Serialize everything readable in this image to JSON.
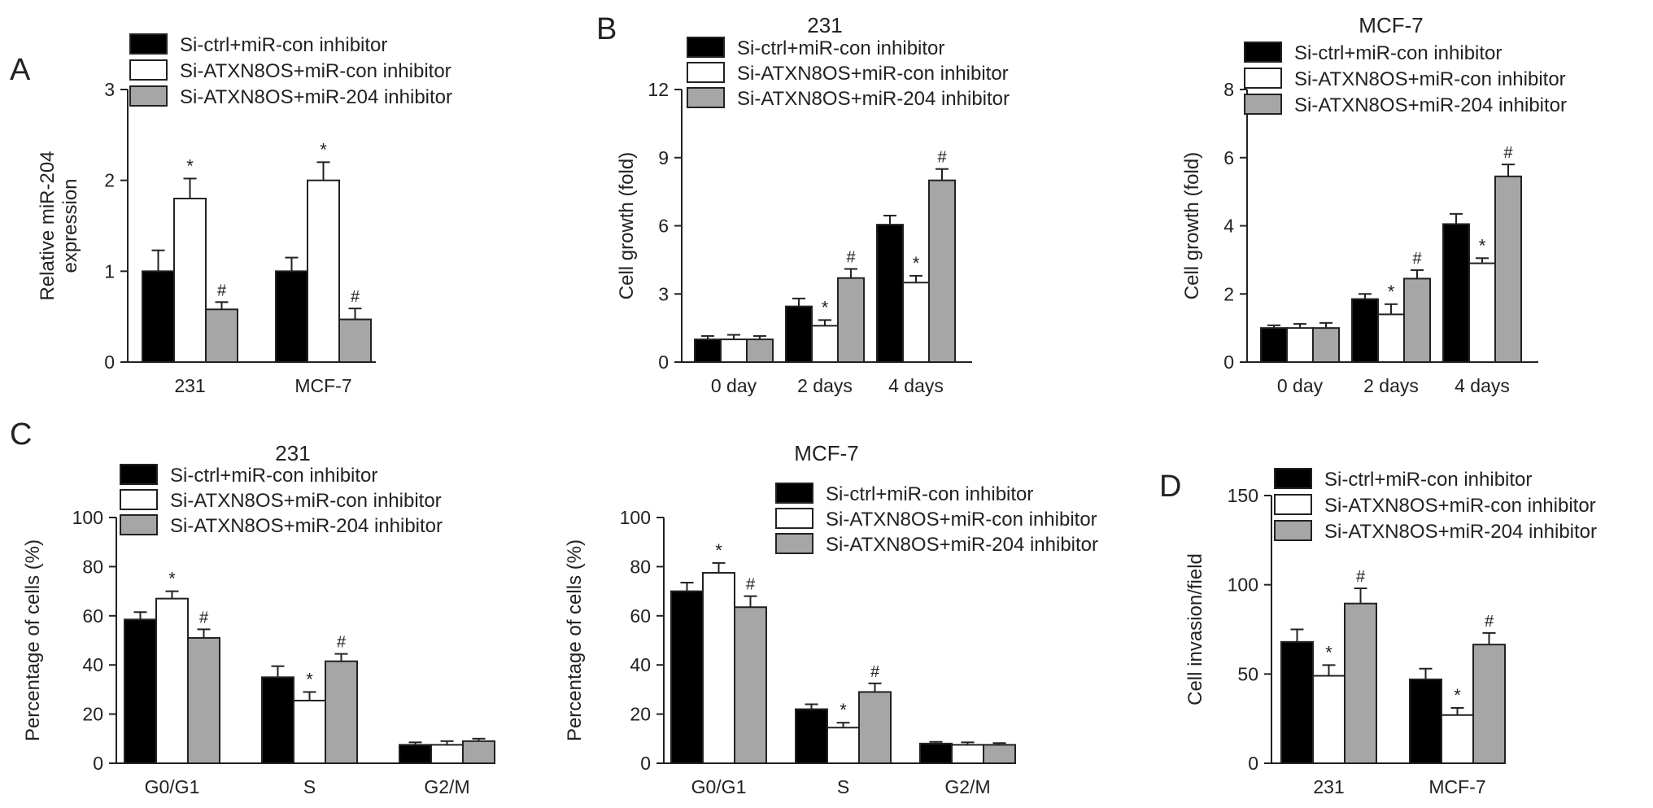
{
  "figure": {
    "legend_labels": [
      "Si-ctrl+miR-con inhibitor",
      "Si-ATXN8OS+miR-con inhibitor",
      "Si-ATXN8OS+miR-204 inhibitor"
    ],
    "colors": {
      "series": [
        "#000000",
        "#ffffff",
        "#a6a6a6"
      ],
      "axis": "#222222"
    }
  },
  "chart_data": [
    {
      "panel_label": "A",
      "type": "bar",
      "title": "",
      "xlabel": "",
      "ylabel": "Relative miR-204 expression",
      "categories": [
        "231",
        "MCF-7"
      ],
      "ylim": [
        0,
        3
      ],
      "yticks": [
        "0",
        "1",
        "2",
        "3"
      ],
      "series": [
        {
          "name": "Si-ctrl+miR-con inhibitor",
          "values": [
            1.0,
            1.0
          ],
          "errors": [
            0.23,
            0.15
          ],
          "marks": [
            "",
            ""
          ]
        },
        {
          "name": "Si-ATXN8OS+miR-con inhibitor",
          "values": [
            1.8,
            2.0
          ],
          "errors": [
            0.22,
            0.2
          ],
          "marks": [
            "*",
            "*"
          ]
        },
        {
          "name": "Si-ATXN8OS+miR-204 inhibitor",
          "values": [
            0.58,
            0.47
          ],
          "errors": [
            0.08,
            0.12
          ],
          "marks": [
            "#",
            "#"
          ]
        }
      ],
      "legend": "top-left",
      "grid": false
    },
    {
      "panel_label": "B",
      "type": "bar",
      "title": "231",
      "xlabel": "",
      "ylabel": "Cell growth (fold)",
      "categories": [
        "0 day",
        "2 days",
        "4 days"
      ],
      "ylim": [
        0,
        12
      ],
      "yticks": [
        "0",
        "3",
        "6",
        "9",
        "12"
      ],
      "series": [
        {
          "name": "Si-ctrl+miR-con inhibitor",
          "values": [
            1.0,
            2.45,
            6.05
          ],
          "errors": [
            0.15,
            0.35,
            0.4
          ],
          "marks": [
            "",
            "",
            ""
          ]
        },
        {
          "name": "Si-ATXN8OS+miR-con inhibitor",
          "values": [
            1.0,
            1.6,
            3.5
          ],
          "errors": [
            0.2,
            0.25,
            0.3
          ],
          "marks": [
            "",
            "*",
            "*"
          ]
        },
        {
          "name": "Si-ATXN8OS+miR-204 inhibitor",
          "values": [
            1.0,
            3.7,
            8.0
          ],
          "errors": [
            0.15,
            0.4,
            0.5
          ],
          "marks": [
            "",
            "#",
            "#"
          ]
        }
      ],
      "legend": "top-left",
      "grid": false
    },
    {
      "panel_label": "",
      "type": "bar",
      "title": "MCF-7",
      "xlabel": "",
      "ylabel": "Cell growth (fold)",
      "categories": [
        "0 day",
        "2 days",
        "4 days"
      ],
      "ylim": [
        0,
        8
      ],
      "yticks": [
        "0",
        "2",
        "4",
        "6",
        "8"
      ],
      "series": [
        {
          "name": "Si-ctrl+miR-con inhibitor",
          "values": [
            1.0,
            1.85,
            4.05
          ],
          "errors": [
            0.08,
            0.15,
            0.3
          ],
          "marks": [
            "",
            "",
            ""
          ]
        },
        {
          "name": "Si-ATXN8OS+miR-con inhibitor",
          "values": [
            1.0,
            1.4,
            2.9
          ],
          "errors": [
            0.12,
            0.3,
            0.15
          ],
          "marks": [
            "",
            "*",
            "*"
          ]
        },
        {
          "name": "Si-ATXN8OS+miR-204 inhibitor",
          "values": [
            1.0,
            2.45,
            5.45
          ],
          "errors": [
            0.15,
            0.25,
            0.35
          ],
          "marks": [
            "",
            "#",
            "#"
          ]
        }
      ],
      "legend": "top-left",
      "grid": false
    },
    {
      "panel_label": "C",
      "type": "bar",
      "title": "231",
      "xlabel": "",
      "ylabel": "Percentage of cells (%)",
      "categories": [
        "G0/G1",
        "S",
        "G2/M"
      ],
      "ylim": [
        0,
        100
      ],
      "yticks": [
        "0",
        "20",
        "40",
        "60",
        "80",
        "100"
      ],
      "series": [
        {
          "name": "Si-ctrl+miR-con inhibitor",
          "values": [
            58.5,
            35.0,
            7.5
          ],
          "errors": [
            3.0,
            4.5,
            1.0
          ],
          "marks": [
            "",
            "",
            ""
          ]
        },
        {
          "name": "Si-ATXN8OS+miR-con inhibitor",
          "values": [
            67.0,
            25.5,
            7.5
          ],
          "errors": [
            3.0,
            3.5,
            1.5
          ],
          "marks": [
            "*",
            "*",
            ""
          ]
        },
        {
          "name": "Si-ATXN8OS+miR-204 inhibitor",
          "values": [
            51.0,
            41.5,
            9.0
          ],
          "errors": [
            3.5,
            3.0,
            1.0
          ],
          "marks": [
            "#",
            "#",
            ""
          ]
        }
      ],
      "legend": "top",
      "grid": false
    },
    {
      "panel_label": "",
      "type": "bar",
      "title": "MCF-7",
      "xlabel": "",
      "ylabel": "Percentage of cells (%)",
      "categories": [
        "G0/G1",
        "S",
        "G2/M"
      ],
      "ylim": [
        0,
        100
      ],
      "yticks": [
        "0",
        "20",
        "40",
        "60",
        "80",
        "100"
      ],
      "series": [
        {
          "name": "Si-ctrl+miR-con inhibitor",
          "values": [
            70.0,
            22.0,
            8.0
          ],
          "errors": [
            3.5,
            2.0,
            0.7
          ],
          "marks": [
            "",
            "",
            ""
          ]
        },
        {
          "name": "Si-ATXN8OS+miR-con inhibitor",
          "values": [
            77.5,
            14.5,
            7.5
          ],
          "errors": [
            4.0,
            2.0,
            1.0
          ],
          "marks": [
            "*",
            "*",
            ""
          ]
        },
        {
          "name": "Si-ATXN8OS+miR-204 inhibitor",
          "values": [
            63.5,
            29.0,
            7.5
          ],
          "errors": [
            4.5,
            3.5,
            0.7
          ],
          "marks": [
            "#",
            "#",
            ""
          ]
        }
      ],
      "legend": "top-right",
      "grid": false
    },
    {
      "panel_label": "D",
      "type": "bar",
      "title": "",
      "xlabel": "",
      "ylabel": "Cell invasion/field",
      "categories": [
        "231",
        "MCF-7"
      ],
      "ylim": [
        0,
        150
      ],
      "yticks": [
        "0",
        "50",
        "100",
        "150"
      ],
      "series": [
        {
          "name": "Si-ctrl+miR-con inhibitor",
          "values": [
            68.0,
            47.0
          ],
          "errors": [
            7.0,
            6.0
          ],
          "marks": [
            "",
            ""
          ]
        },
        {
          "name": "Si-ATXN8OS+miR-con inhibitor",
          "values": [
            49.0,
            27.0
          ],
          "errors": [
            6.0,
            4.0
          ],
          "marks": [
            "*",
            "*"
          ]
        },
        {
          "name": "Si-ATXN8OS+miR-204 inhibitor",
          "values": [
            89.5,
            66.5
          ],
          "errors": [
            8.5,
            6.5
          ],
          "marks": [
            "#",
            "#"
          ]
        }
      ],
      "legend": "top",
      "grid": false
    }
  ]
}
